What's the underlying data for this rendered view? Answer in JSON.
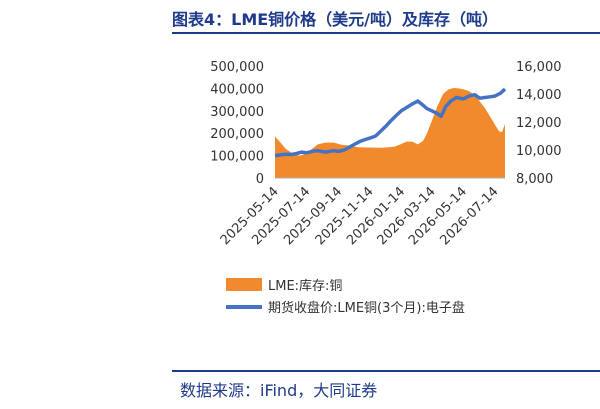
{
  "title": "图表4：LME铜价格（美元/吨）及库存（吨）",
  "source": "数据来源：iFind，大同证券",
  "colors": {
    "inventory": "#F08A2C",
    "price": "#4472C4",
    "accent": "#1f3a8a"
  },
  "chart_data": {
    "type": "area+line",
    "x_ticks": [
      "2025-05-14",
      "2025-07-14",
      "2025-09-14",
      "2025-11-14",
      "2026-01-14",
      "2026-03-14",
      "2026-05-14",
      "2026-07-14"
    ],
    "y_left_ticks": [
      "0",
      "100,000",
      "200,000",
      "300,000",
      "400,000",
      "500,000"
    ],
    "y_right_ticks": [
      "8,000",
      "10,000",
      "12,000",
      "14,000",
      "16,000"
    ],
    "y_left_range": [
      0,
      500000
    ],
    "y_right_range": [
      8000,
      16000
    ],
    "legend": {
      "placement": "bottom",
      "items": [
        "LME:库存:铜",
        "期货收盘价:LME铜(3个月):电子盘"
      ]
    },
    "series": [
      {
        "name": "LME:库存:铜",
        "type": "area",
        "axis": "left",
        "points": [
          [
            "2025-05-14",
            185000
          ],
          [
            "2025-05-24",
            160000
          ],
          [
            "2025-06-04",
            130000
          ],
          [
            "2025-06-20",
            105000
          ],
          [
            "2025-07-01",
            100000
          ],
          [
            "2025-07-14",
            110000
          ],
          [
            "2025-07-25",
            130000
          ],
          [
            "2025-08-05",
            150000
          ],
          [
            "2025-08-20",
            158000
          ],
          [
            "2025-09-05",
            158000
          ],
          [
            "2025-09-20",
            148000
          ],
          [
            "2025-10-05",
            145000
          ],
          [
            "2025-10-20",
            138000
          ],
          [
            "2025-11-05",
            136000
          ],
          [
            "2025-11-14",
            136000
          ],
          [
            "2025-12-01",
            135000
          ],
          [
            "2025-12-15",
            136000
          ],
          [
            "2026-01-01",
            140000
          ],
          [
            "2026-01-14",
            152000
          ],
          [
            "2026-01-25",
            163000
          ],
          [
            "2026-02-05",
            162000
          ],
          [
            "2026-02-15",
            150000
          ],
          [
            "2026-02-25",
            165000
          ],
          [
            "2026-03-05",
            200000
          ],
          [
            "2026-03-14",
            255000
          ],
          [
            "2026-03-25",
            320000
          ],
          [
            "2026-04-05",
            375000
          ],
          [
            "2026-04-15",
            395000
          ],
          [
            "2026-04-25",
            402000
          ],
          [
            "2026-05-05",
            400000
          ],
          [
            "2026-05-14",
            396000
          ],
          [
            "2026-05-25",
            388000
          ],
          [
            "2026-06-05",
            372000
          ],
          [
            "2026-06-15",
            342000
          ],
          [
            "2026-06-25",
            312000
          ],
          [
            "2026-07-05",
            275000
          ],
          [
            "2026-07-14",
            240000
          ],
          [
            "2026-07-22",
            210000
          ],
          [
            "2026-07-28",
            205000
          ],
          [
            "2026-08-03",
            240000
          ]
        ]
      },
      {
        "name": "期货收盘价:LME铜(3个月):电子盘",
        "type": "line",
        "axis": "right",
        "points": [
          [
            "2025-05-14",
            9600
          ],
          [
            "2025-05-25",
            9650
          ],
          [
            "2025-06-05",
            9700
          ],
          [
            "2025-06-15",
            9680
          ],
          [
            "2025-06-25",
            9750
          ],
          [
            "2025-07-05",
            9850
          ],
          [
            "2025-07-14",
            9800
          ],
          [
            "2025-07-25",
            9900
          ],
          [
            "2025-08-05",
            9950
          ],
          [
            "2025-08-20",
            9850
          ],
          [
            "2025-09-05",
            9950
          ],
          [
            "2025-09-14",
            9900
          ],
          [
            "2025-09-25",
            10000
          ],
          [
            "2025-10-05",
            10200
          ],
          [
            "2025-10-15",
            10400
          ],
          [
            "2025-10-25",
            10600
          ],
          [
            "2025-11-05",
            10750
          ],
          [
            "2025-11-14",
            10850
          ],
          [
            "2025-11-25",
            11000
          ],
          [
            "2025-12-05",
            11350
          ],
          [
            "2025-12-15",
            11700
          ],
          [
            "2025-12-25",
            12100
          ],
          [
            "2026-01-05",
            12500
          ],
          [
            "2026-01-14",
            12800
          ],
          [
            "2026-01-25",
            13050
          ],
          [
            "2026-02-05",
            13300
          ],
          [
            "2026-02-15",
            13500
          ],
          [
            "2026-02-25",
            13200
          ],
          [
            "2026-03-05",
            12950
          ],
          [
            "2026-03-14",
            12800
          ],
          [
            "2026-03-25",
            12600
          ],
          [
            "2026-04-01",
            12400
          ],
          [
            "2026-04-10",
            13100
          ],
          [
            "2026-04-20",
            13500
          ],
          [
            "2026-05-01",
            13750
          ],
          [
            "2026-05-14",
            13650
          ],
          [
            "2026-05-25",
            13850
          ],
          [
            "2026-06-05",
            13950
          ],
          [
            "2026-06-15",
            13700
          ],
          [
            "2026-06-25",
            13750
          ],
          [
            "2026-07-05",
            13800
          ],
          [
            "2026-07-14",
            13850
          ],
          [
            "2026-07-25",
            14050
          ],
          [
            "2026-08-03",
            14350
          ]
        ]
      }
    ]
  }
}
